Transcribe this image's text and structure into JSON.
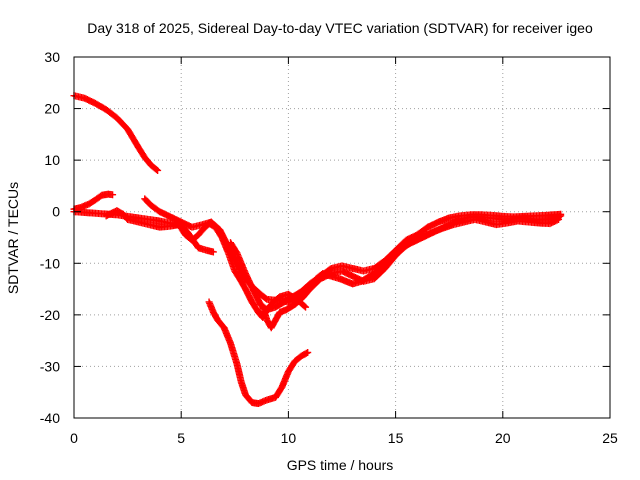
{
  "chart_data": {
    "type": "scatter",
    "title": "Day 318 of 2025, Sidereal Day-to-day VTEC variation (SDTVAR) for receiver igeo",
    "xlabel": "GPS time / hours",
    "ylabel": "SDTVAR / TECUs",
    "xlim": [
      0,
      25
    ],
    "ylim": [
      -40,
      30
    ],
    "xticks": [
      0,
      5,
      10,
      15,
      20,
      25
    ],
    "yticks": [
      -40,
      -30,
      -20,
      -10,
      0,
      10,
      20,
      30
    ],
    "xtick_labels": [
      "0",
      "5",
      "10",
      "15",
      "20",
      "25"
    ],
    "ytick_labels": [
      "-40",
      "-30",
      "-20",
      "-10",
      "0",
      "10",
      "20",
      "30"
    ],
    "grid": true,
    "legend": false,
    "marker": "+",
    "color": "#ff0000",
    "series": [
      {
        "name": "track-a",
        "points": [
          [
            0.0,
            22.5
          ],
          [
            0.5,
            22.0
          ],
          [
            1.0,
            21.0
          ],
          [
            1.5,
            19.8
          ],
          [
            2.0,
            18.2
          ],
          [
            2.5,
            16.0
          ],
          [
            3.0,
            12.5
          ],
          [
            3.3,
            10.5
          ],
          [
            3.6,
            9.0
          ],
          [
            3.9,
            8.0
          ]
        ]
      },
      {
        "name": "track-b",
        "points": [
          [
            0.0,
            0.5
          ],
          [
            0.3,
            0.8
          ],
          [
            0.7,
            1.5
          ],
          [
            1.0,
            2.3
          ],
          [
            1.3,
            3.2
          ],
          [
            1.6,
            3.4
          ],
          [
            1.8,
            3.3
          ]
        ]
      },
      {
        "name": "track-c",
        "points": [
          [
            0.0,
            0.0
          ],
          [
            1.0,
            -0.3
          ],
          [
            2.0,
            -0.6
          ],
          [
            3.0,
            -1.2
          ],
          [
            4.0,
            -1.8
          ],
          [
            4.8,
            -2.5
          ],
          [
            5.0,
            -2.8
          ],
          [
            5.3,
            -4.0
          ],
          [
            5.8,
            -7.0
          ],
          [
            6.2,
            -7.5
          ],
          [
            6.5,
            -7.8
          ]
        ]
      },
      {
        "name": "track-d",
        "points": [
          [
            1.5,
            -0.8
          ],
          [
            2.0,
            0.2
          ],
          [
            2.3,
            -0.5
          ],
          [
            2.5,
            -1.5
          ],
          [
            3.0,
            -2.0
          ],
          [
            3.5,
            -2.5
          ],
          [
            4.0,
            -3.0
          ],
          [
            4.5,
            -2.8
          ],
          [
            4.9,
            -2.5
          ],
          [
            5.2,
            -4.5
          ],
          [
            5.5,
            -5.5
          ],
          [
            5.8,
            -4.5
          ],
          [
            6.0,
            -3.5
          ],
          [
            6.3,
            -2.3
          ],
          [
            6.6,
            -3.0
          ],
          [
            6.9,
            -5.0
          ],
          [
            7.2,
            -8.0
          ],
          [
            7.5,
            -11.5
          ],
          [
            7.8,
            -13.5
          ],
          [
            8.0,
            -15.0
          ],
          [
            8.3,
            -17.5
          ],
          [
            8.6,
            -19.5
          ],
          [
            8.8,
            -20.5
          ],
          [
            9.0,
            -19.0
          ],
          [
            9.3,
            -17.5
          ],
          [
            9.6,
            -16.5
          ],
          [
            10.0,
            -16.0
          ],
          [
            10.4,
            -17.0
          ],
          [
            10.8,
            -18.5
          ]
        ]
      },
      {
        "name": "track-e",
        "points": [
          [
            3.3,
            2.5
          ],
          [
            3.6,
            1.2
          ],
          [
            4.0,
            0.0
          ],
          [
            4.5,
            -1.0
          ],
          [
            5.0,
            -2.0
          ],
          [
            5.5,
            -3.0
          ],
          [
            6.0,
            -2.5
          ],
          [
            6.4,
            -2.0
          ],
          [
            6.8,
            -3.5
          ],
          [
            7.1,
            -6.0
          ],
          [
            7.4,
            -8.5
          ],
          [
            7.6,
            -10.0
          ],
          [
            7.9,
            -12.5
          ],
          [
            8.3,
            -14.5
          ],
          [
            8.7,
            -16.0
          ],
          [
            9.0,
            -17.0
          ],
          [
            9.5,
            -17.2
          ],
          [
            10.0,
            -17.5
          ],
          [
            10.5,
            -16.5
          ],
          [
            11.0,
            -15.0
          ],
          [
            11.5,
            -13.0
          ],
          [
            12.0,
            -12.0
          ],
          [
            12.5,
            -11.5
          ],
          [
            13.0,
            -12.5
          ],
          [
            13.5,
            -13.5
          ],
          [
            14.0,
            -13.0
          ],
          [
            14.5,
            -11.0
          ],
          [
            15.0,
            -8.5
          ],
          [
            15.5,
            -6.5
          ],
          [
            16.0,
            -5.5
          ],
          [
            16.5,
            -4.5
          ],
          [
            17.0,
            -3.5
          ],
          [
            17.5,
            -2.5
          ],
          [
            18.0,
            -1.5
          ],
          [
            18.5,
            -1.0
          ],
          [
            19.0,
            -1.0
          ],
          [
            19.5,
            -1.3
          ],
          [
            20.0,
            -1.5
          ],
          [
            20.5,
            -1.3
          ],
          [
            21.0,
            -1.2
          ],
          [
            21.5,
            -1.5
          ],
          [
            22.0,
            -1.5
          ],
          [
            22.5,
            -1.3
          ],
          [
            22.7,
            -0.8
          ]
        ]
      },
      {
        "name": "track-f",
        "points": [
          [
            7.3,
            -6.0
          ],
          [
            7.6,
            -8.0
          ],
          [
            8.0,
            -12.0
          ],
          [
            8.4,
            -15.5
          ],
          [
            8.7,
            -18.0
          ],
          [
            9.0,
            -19.0
          ],
          [
            9.4,
            -18.5
          ],
          [
            9.8,
            -17.5
          ],
          [
            10.2,
            -16.5
          ],
          [
            10.6,
            -15.5
          ],
          [
            11.0,
            -14.0
          ],
          [
            11.5,
            -12.5
          ],
          [
            12.0,
            -11.0
          ],
          [
            12.5,
            -10.5
          ],
          [
            13.0,
            -11.0
          ],
          [
            13.5,
            -11.5
          ],
          [
            14.0,
            -11.0
          ],
          [
            14.5,
            -9.5
          ],
          [
            15.0,
            -7.5
          ],
          [
            15.5,
            -5.5
          ],
          [
            16.0,
            -4.5
          ],
          [
            16.5,
            -3.0
          ],
          [
            17.0,
            -2.0
          ],
          [
            17.5,
            -1.2
          ],
          [
            18.0,
            -0.8
          ],
          [
            18.5,
            -0.6
          ],
          [
            19.0,
            -0.6
          ],
          [
            19.5,
            -0.7
          ],
          [
            20.0,
            -0.9
          ],
          [
            20.5,
            -1.0
          ],
          [
            21.0,
            -0.9
          ],
          [
            21.5,
            -0.8
          ],
          [
            22.0,
            -0.7
          ],
          [
            22.7,
            -0.5
          ]
        ]
      },
      {
        "name": "track-g",
        "points": [
          [
            8.8,
            -18.5
          ],
          [
            9.0,
            -21.0
          ],
          [
            9.2,
            -22.5
          ],
          [
            9.4,
            -21.0
          ],
          [
            9.6,
            -19.5
          ],
          [
            9.9,
            -19.0
          ],
          [
            10.3,
            -18.0
          ],
          [
            10.7,
            -16.5
          ],
          [
            11.0,
            -15.0
          ],
          [
            11.3,
            -13.0
          ],
          [
            11.6,
            -12.0
          ],
          [
            12.0,
            -12.5
          ],
          [
            12.4,
            -13.0
          ],
          [
            12.7,
            -13.5
          ],
          [
            13.0,
            -14.0
          ],
          [
            13.4,
            -13.5
          ],
          [
            13.8,
            -12.5
          ],
          [
            14.2,
            -11.5
          ],
          [
            14.7,
            -9.5
          ],
          [
            15.2,
            -7.5
          ],
          [
            15.7,
            -6.0
          ],
          [
            16.2,
            -5.0
          ],
          [
            16.7,
            -4.0
          ],
          [
            17.2,
            -3.2
          ],
          [
            17.7,
            -2.5
          ],
          [
            18.2,
            -2.0
          ],
          [
            18.7,
            -1.5
          ],
          [
            19.2,
            -2.0
          ],
          [
            19.7,
            -2.5
          ],
          [
            20.2,
            -2.2
          ],
          [
            20.7,
            -1.8
          ],
          [
            21.2,
            -2.0
          ],
          [
            21.7,
            -2.2
          ],
          [
            22.2,
            -2.3
          ],
          [
            22.6,
            -1.5
          ]
        ]
      },
      {
        "name": "track-h",
        "points": [
          [
            6.3,
            -17.5
          ],
          [
            6.5,
            -19.5
          ],
          [
            6.7,
            -21.0
          ],
          [
            7.0,
            -22.5
          ],
          [
            7.3,
            -25.5
          ],
          [
            7.6,
            -29.5
          ],
          [
            7.8,
            -33.0
          ],
          [
            8.0,
            -35.5
          ],
          [
            8.3,
            -37.0
          ],
          [
            8.6,
            -37.2
          ],
          [
            9.0,
            -36.5
          ],
          [
            9.4,
            -36.0
          ],
          [
            9.7,
            -34.0
          ],
          [
            10.0,
            -31.0
          ],
          [
            10.3,
            -29.0
          ],
          [
            10.6,
            -28.0
          ],
          [
            10.9,
            -27.3
          ]
        ]
      }
    ]
  }
}
